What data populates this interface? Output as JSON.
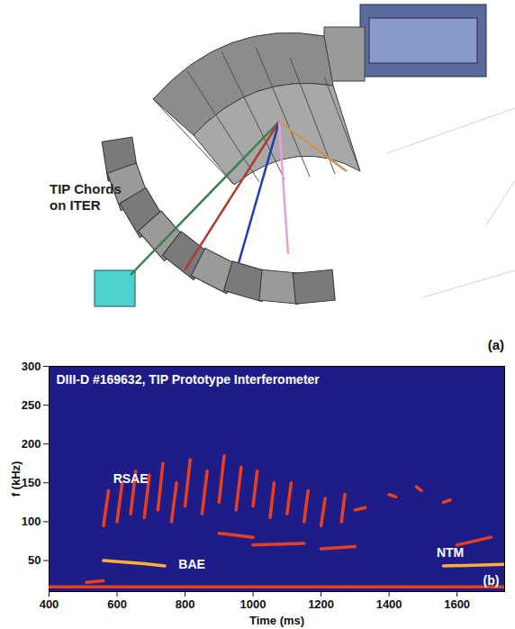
{
  "diagram": {
    "label": "TIP Chords on ITER",
    "panel_label": "(a)",
    "chord_colors": [
      "#3f7d4a",
      "#b03a2e",
      "#1a3fb0",
      "#e8a0d8",
      "#c8965a"
    ]
  },
  "chart_data": {
    "type": "spectrogram",
    "title": "DIII-D #169632, TIP Prototype Interferometer",
    "panel_label": "(b)",
    "x_label": "Time (ms)",
    "y_label": "f (kHz)",
    "xlim": [
      400,
      1740
    ],
    "xticks": [
      400,
      600,
      800,
      1000,
      1200,
      1400,
      1600
    ],
    "ylim": [
      10,
      300
    ],
    "yticks": [
      50,
      100,
      150,
      200,
      250,
      300
    ],
    "series": [
      {
        "color": "#e8401c",
        "traces": [
          [
            [
              400,
              16
            ],
            [
              1740,
              16
            ]
          ],
          [
            [
              510,
              22
            ],
            [
              560,
              24
            ]
          ],
          [
            [
              560,
              95
            ],
            [
              575,
              140
            ]
          ],
          [
            [
              600,
              100
            ],
            [
              615,
              150
            ]
          ],
          [
            [
              640,
              110
            ],
            [
              655,
              165
            ]
          ],
          [
            [
              680,
              105
            ],
            [
              695,
              160
            ]
          ],
          [
            [
              720,
              115
            ],
            [
              735,
              175
            ]
          ],
          [
            [
              760,
              100
            ],
            [
              775,
              150
            ]
          ],
          [
            [
              800,
              120
            ],
            [
              815,
              180
            ]
          ],
          [
            [
              850,
              110
            ],
            [
              865,
              165
            ]
          ],
          [
            [
              900,
              125
            ],
            [
              915,
              185
            ]
          ],
          [
            [
              950,
              115
            ],
            [
              965,
              170
            ]
          ],
          [
            [
              1000,
              120
            ],
            [
              1012,
              165
            ]
          ],
          [
            [
              1050,
              105
            ],
            [
              1062,
              150
            ]
          ],
          [
            [
              1100,
              110
            ],
            [
              1112,
              150
            ]
          ],
          [
            [
              1150,
              100
            ],
            [
              1162,
              140
            ]
          ],
          [
            [
              1200,
              95
            ],
            [
              1212,
              130
            ]
          ],
          [
            [
              1260,
              100
            ],
            [
              1270,
              135
            ]
          ],
          [
            [
              1300,
              115
            ],
            [
              1330,
              118
            ]
          ],
          [
            [
              1400,
              135
            ],
            [
              1420,
              132
            ]
          ],
          [
            [
              1480,
              145
            ],
            [
              1495,
              140
            ]
          ],
          [
            [
              1560,
              125
            ],
            [
              1580,
              128
            ]
          ],
          [
            [
              900,
              85
            ],
            [
              1000,
              80
            ]
          ],
          [
            [
              1000,
              70
            ],
            [
              1150,
              72
            ]
          ],
          [
            [
              1200,
              65
            ],
            [
              1300,
              68
            ]
          ],
          [
            [
              1600,
              70
            ],
            [
              1700,
              80
            ]
          ]
        ]
      },
      {
        "color": "#ffb030",
        "traces": [
          [
            [
              560,
              50
            ],
            [
              620,
              48
            ],
            [
              680,
              46
            ],
            [
              740,
              43
            ]
          ],
          [
            [
              1560,
              43
            ],
            [
              1650,
              44
            ],
            [
              1740,
              45
            ]
          ]
        ]
      }
    ],
    "annotations": [
      {
        "text": "RSAE",
        "x": 640,
        "y": 155
      },
      {
        "text": "BAE",
        "x": 820,
        "y": 45
      },
      {
        "text": "NTM",
        "x": 1580,
        "y": 60
      }
    ]
  }
}
